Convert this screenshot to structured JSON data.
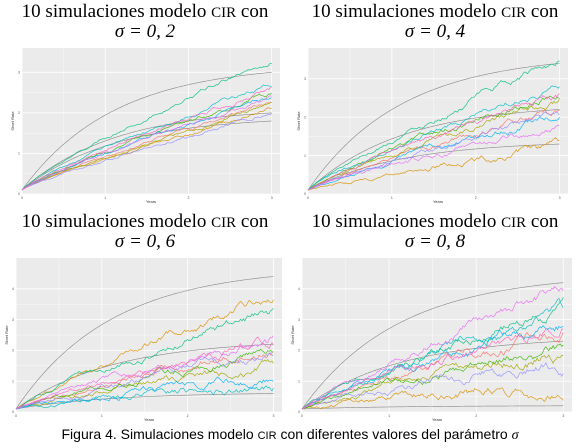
{
  "caption": {
    "prefix": "Figura 4. Simulaciones modelo ",
    "model": "CIR",
    "suffix": " con diferentes valores del parámetro ",
    "param": "σ"
  },
  "colors": [
    "#f8766d",
    "#d89000",
    "#a3a500",
    "#39b600",
    "#00bf7d",
    "#00bfc4",
    "#00b0f6",
    "#9590ff",
    "#e76bf3",
    "#ff62bc"
  ],
  "panel_background": "#ebebeb",
  "gridline_color": "#ffffff",
  "envelope_color": "#888888",
  "chart_data": [
    {
      "type": "line",
      "title_prefix": "10 simulaciones modelo ",
      "title_model": "CIR",
      "title_suffix": " con",
      "subtitle": "σ = 0, 2",
      "sigma": 0.2,
      "xlabel": "Years",
      "ylabel": "Short Rate",
      "x_ticks": [
        0,
        1,
        2,
        3
      ],
      "y_ticks": [
        0,
        1,
        2,
        3
      ],
      "xlim": [
        0,
        3.1
      ],
      "ylim": [
        0,
        3.6
      ],
      "series_count": 10,
      "start": 0.1,
      "mean_end": 2.0,
      "upper_end": 3.0,
      "lower_end": 1.8,
      "end_values": [
        2.25,
        2.1,
        2.2,
        2.5,
        3.3,
        2.7,
        2.35,
        2.0,
        2.4,
        2.6
      ],
      "noise": 0.12
    },
    {
      "type": "line",
      "title_prefix": "10 simulaciones modelo ",
      "title_model": "CIR",
      "title_suffix": " con",
      "subtitle": "σ = 0, 4",
      "sigma": 0.4,
      "xlabel": "Years",
      "ylabel": "Short Rate",
      "x_ticks": [
        0,
        1,
        2,
        3
      ],
      "y_ticks": [
        0,
        1,
        2,
        3
      ],
      "xlim": [
        0,
        3.1
      ],
      "ylim": [
        0,
        3.8
      ],
      "series_count": 10,
      "start": 0.1,
      "mean_end": 2.2,
      "upper_end": 3.4,
      "lower_end": 1.3,
      "end_values": [
        2.2,
        1.2,
        2.4,
        2.7,
        3.5,
        2.9,
        2.0,
        2.1,
        1.7,
        2.5
      ],
      "noise": 0.22
    },
    {
      "type": "line",
      "title_prefix": "10 simulaciones modelo ",
      "title_model": "CIR",
      "title_suffix": " con",
      "subtitle": "σ = 0, 6",
      "sigma": 0.6,
      "xlabel": "Years",
      "ylabel": "Short Rate",
      "x_ticks": [
        0,
        1,
        2,
        3
      ],
      "y_ticks": [
        0,
        1,
        2,
        3,
        4
      ],
      "xlim": [
        0,
        3.1
      ],
      "ylim": [
        0,
        5.0
      ],
      "series_count": 10,
      "start": 0.1,
      "mean_end": 2.2,
      "upper_end": 4.4,
      "lower_end": 0.6,
      "end_values": [
        2.1,
        3.8,
        1.5,
        2.0,
        3.3,
        0.9,
        1.1,
        1.9,
        2.4,
        2.2
      ],
      "noise": 0.35
    },
    {
      "type": "line",
      "title_prefix": "10 simulaciones modelo ",
      "title_model": "CIR",
      "title_suffix": " con",
      "subtitle": "σ = 0, 8",
      "sigma": 0.8,
      "xlabel": "Years",
      "ylabel": "Short Rate",
      "x_ticks": [
        0,
        1,
        2,
        3
      ],
      "y_ticks": [
        0,
        1,
        2,
        3,
        4
      ],
      "xlim": [
        0,
        3.1
      ],
      "ylim": [
        0,
        5.0
      ],
      "series_count": 10,
      "start": 0.1,
      "mean_end": 2.3,
      "upper_end": 4.2,
      "lower_end": 0.2,
      "end_values": [
        2.6,
        0.9,
        2.0,
        2.1,
        3.4,
        3.2,
        2.8,
        1.6,
        4.1,
        2.9
      ],
      "noise": 0.45
    }
  ]
}
